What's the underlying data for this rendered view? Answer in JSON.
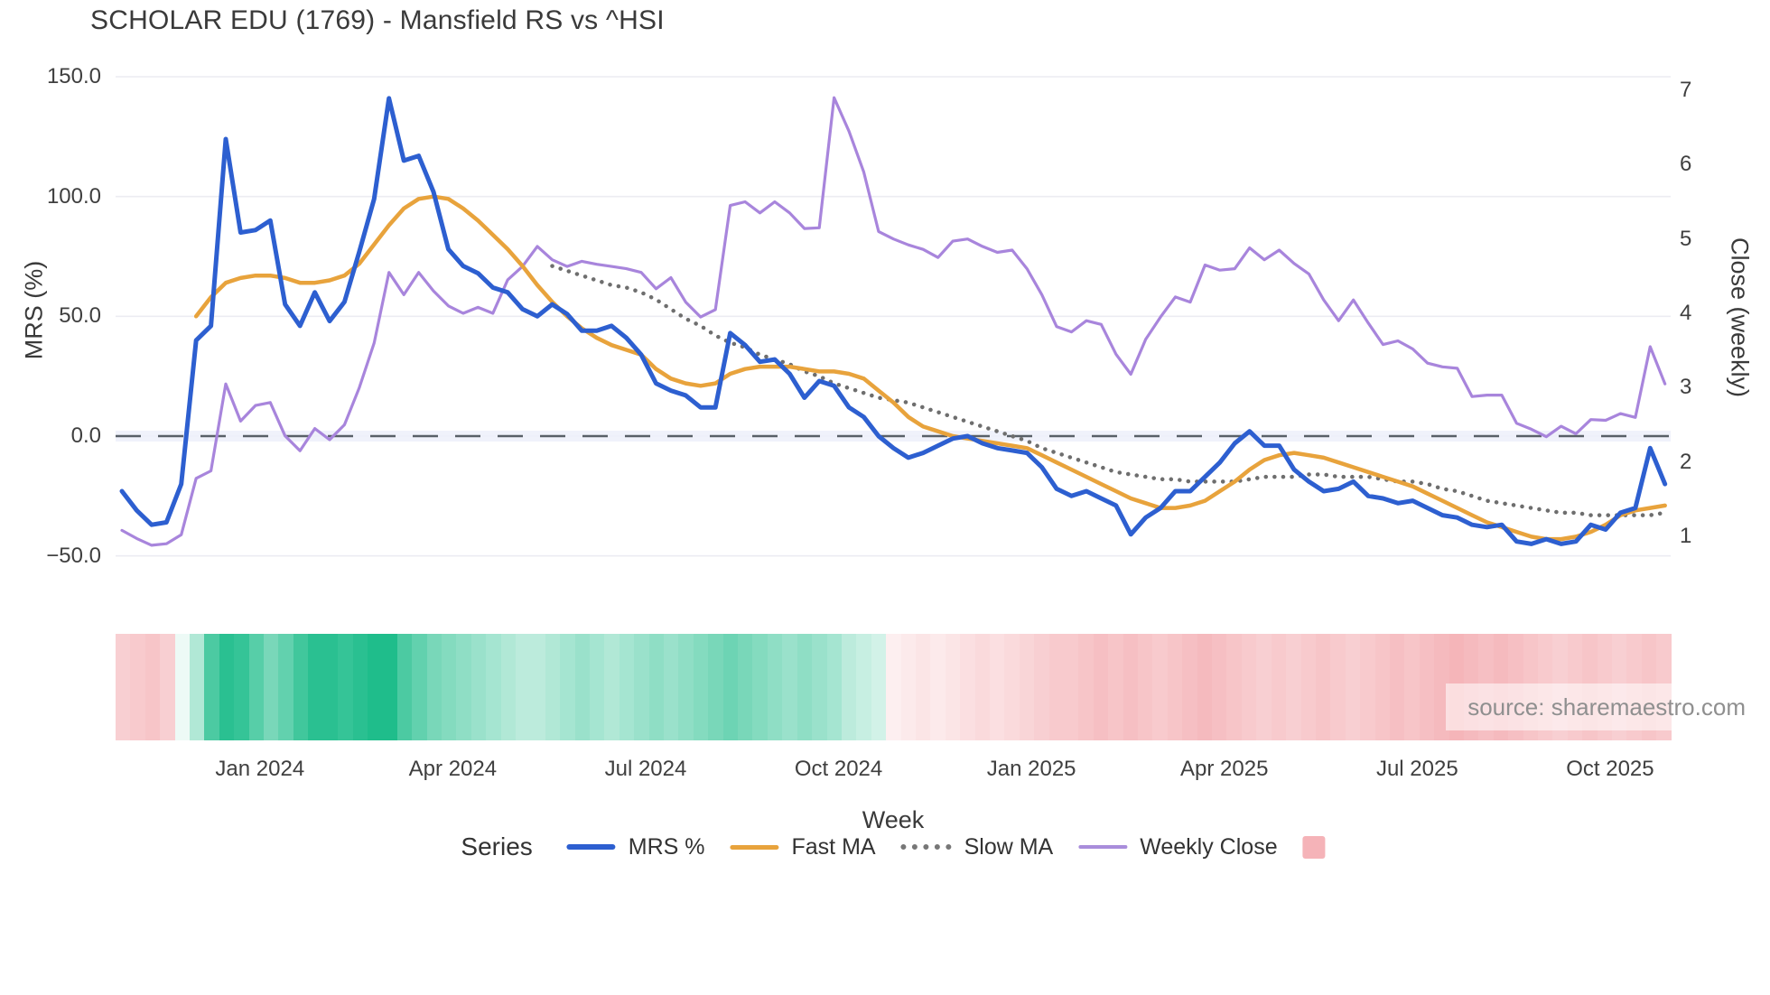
{
  "title": "SCHOLAR EDU (1769) - Mansfield RS vs ^HSI",
  "source_label": "source: sharemaestro.com",
  "axes": {
    "left": {
      "label": "MRS (%)",
      "ticks": [
        "150.0",
        "100.0",
        "50.0",
        "0.0",
        "−50.0"
      ],
      "tick_values": [
        150,
        100,
        50,
        0,
        -50
      ]
    },
    "right": {
      "label": "Close (weekly)",
      "ticks": [
        "7",
        "6",
        "5",
        "4",
        "3",
        "2",
        "1"
      ],
      "tick_values": [
        7,
        6,
        5,
        4,
        3,
        2,
        1
      ]
    },
    "x": {
      "label": "Week",
      "ticks": [
        "Jan 2024",
        "Apr 2024",
        "Jul 2024",
        "Oct 2024",
        "Jan 2025",
        "Apr 2025",
        "Jul 2025",
        "Oct 2025"
      ],
      "tick_weeks": [
        9.3,
        22.3,
        35.3,
        48.3,
        61.3,
        74.3,
        87.3,
        100.3
      ]
    }
  },
  "legend": {
    "series_label": "Series",
    "items": [
      {
        "label": "MRS %",
        "swatch": "line",
        "color": "#2d5fd0",
        "thickness": 6
      },
      {
        "label": "Fast MA",
        "swatch": "line",
        "color": "#e8a33c",
        "thickness": 5
      },
      {
        "label": "Slow MA",
        "swatch": "dotted",
        "color": "#777777",
        "thickness": 6
      },
      {
        "label": "Weekly Close",
        "swatch": "line",
        "color": "#a98ddb",
        "thickness": 4
      },
      {
        "label": "",
        "swatch": "square",
        "color": "#f5b3b8",
        "thickness": 25
      }
    ]
  },
  "chart_data": {
    "type": "line",
    "title": "SCHOLAR EDU (1769) - Mansfield RS vs ^HSI",
    "xlabel": "Week",
    "ylabel_left": "MRS (%)",
    "ylabel_right": "Close (weekly)",
    "left_ylim": [
      -50,
      150
    ],
    "right_ylim": [
      1,
      7
    ],
    "zero_line": 0,
    "grid": "horizontal-left-ticks",
    "legend_position": "bottom",
    "n_weeks": 105,
    "series": [
      {
        "name": "MRS %",
        "axis": "left",
        "color": "#2d5fd0",
        "style": "solid",
        "width": 5,
        "start_week": 0,
        "values": [
          -23,
          -31,
          -37,
          -36,
          -20,
          40,
          46,
          124,
          85,
          86,
          90,
          55,
          46,
          60,
          48,
          56,
          77,
          99,
          141,
          115,
          117,
          102,
          78,
          71,
          68,
          62,
          60,
          53,
          50,
          55,
          51,
          44,
          44,
          46,
          41,
          34,
          22,
          19,
          17,
          12,
          12,
          43,
          38,
          31,
          32,
          26,
          16,
          23,
          21,
          12,
          8,
          0,
          -5,
          -9,
          -7,
          -4,
          -1,
          0,
          -3,
          -5,
          -6,
          -7,
          -13,
          -22,
          -25,
          -23,
          -26,
          -29,
          -41,
          -34,
          -30,
          -23,
          -23,
          -17,
          -11,
          -3,
          2,
          -4,
          -4,
          -14,
          -19,
          -23,
          -22,
          -19,
          -25,
          -26,
          -28,
          -27,
          -30,
          -33,
          -34,
          -37,
          -38,
          -37,
          -44,
          -45,
          -43,
          -45,
          -44,
          -37,
          -39,
          -32,
          -30,
          -5,
          -20
        ]
      },
      {
        "name": "Fast MA",
        "axis": "left",
        "color": "#e8a33c",
        "style": "solid",
        "width": 4.5,
        "start_week": 5,
        "values": [
          50,
          58,
          64,
          66,
          67,
          67,
          66,
          64,
          64,
          65,
          67,
          72,
          80,
          88,
          95,
          99,
          100,
          99,
          95,
          90,
          84,
          78,
          71,
          63,
          56,
          50,
          45,
          41,
          38,
          36,
          34,
          28,
          24,
          22,
          21,
          22,
          26,
          28,
          29,
          29,
          29,
          28,
          27,
          27,
          26,
          24,
          19,
          14,
          8,
          4,
          2,
          0,
          -1,
          -2,
          -3,
          -4,
          -5,
          -8,
          -11,
          -14,
          -17,
          -20,
          -23,
          -26,
          -28,
          -30,
          -30,
          -29,
          -27,
          -23,
          -19,
          -14,
          -10,
          -8,
          -7,
          -8,
          -9,
          -11,
          -13,
          -15,
          -17,
          -19,
          -21,
          -24,
          -27,
          -30,
          -33,
          -36,
          -38,
          -40,
          -42,
          -43,
          -43,
          -42,
          -40,
          -37,
          -33,
          -31,
          -30,
          -29
        ]
      },
      {
        "name": "Slow MA",
        "axis": "left",
        "color": "#6e6e6e",
        "style": "dotted",
        "width": 4.5,
        "start_week": 29,
        "values": [
          71,
          69,
          67,
          65,
          63,
          62,
          60,
          57,
          53,
          49,
          46,
          42,
          39,
          37,
          34,
          32,
          30,
          27,
          25,
          22,
          20,
          18,
          16,
          15,
          14,
          12,
          10,
          8,
          6,
          4,
          2,
          0,
          -2,
          -5,
          -7,
          -9,
          -11,
          -13,
          -15,
          -16,
          -17,
          -18,
          -18,
          -19,
          -19,
          -19,
          -19,
          -18,
          -17,
          -17,
          -17,
          -16,
          -16,
          -17,
          -17,
          -17,
          -18,
          -19,
          -19,
          -20,
          -22,
          -23,
          -25,
          -27,
          -28,
          -29,
          -30,
          -31,
          -32,
          -32,
          -33,
          -33,
          -33,
          -33,
          -33,
          -32
        ]
      },
      {
        "name": "Weekly Close",
        "axis": "right",
        "color": "#a885dc",
        "style": "solid",
        "width": 3.2,
        "start_week": 0,
        "values": [
          1.08,
          0.97,
          0.88,
          0.9,
          1.02,
          1.78,
          1.88,
          3.05,
          2.55,
          2.76,
          2.8,
          2.35,
          2.15,
          2.45,
          2.3,
          2.5,
          3.0,
          3.6,
          4.55,
          4.25,
          4.55,
          4.3,
          4.1,
          4.0,
          4.08,
          4.0,
          4.45,
          4.63,
          4.9,
          4.72,
          4.63,
          4.7,
          4.66,
          4.63,
          4.6,
          4.55,
          4.33,
          4.48,
          4.15,
          3.95,
          4.05,
          5.45,
          5.5,
          5.35,
          5.5,
          5.35,
          5.14,
          5.15,
          6.9,
          6.45,
          5.9,
          5.1,
          5.0,
          4.92,
          4.86,
          4.75,
          4.97,
          5.0,
          4.9,
          4.82,
          4.85,
          4.6,
          4.25,
          3.82,
          3.75,
          3.9,
          3.85,
          3.45,
          3.18,
          3.65,
          3.95,
          4.22,
          4.15,
          4.65,
          4.58,
          4.6,
          4.88,
          4.72,
          4.85,
          4.67,
          4.53,
          4.18,
          3.9,
          4.18,
          3.87,
          3.58,
          3.63,
          3.52,
          3.33,
          3.28,
          3.26,
          2.88,
          2.9,
          2.9,
          2.52,
          2.44,
          2.34,
          2.48,
          2.38,
          2.57,
          2.56,
          2.65,
          2.6,
          3.55,
          3.05
        ]
      }
    ],
    "heatmap": {
      "description": "bottom weekly sentiment strip, green positive / red negative",
      "positive_color": "#1fbd8b",
      "negative_color": "#f0959b",
      "values": [
        -0.45,
        -0.5,
        -0.55,
        -0.45,
        0.08,
        0.35,
        0.8,
        0.95,
        0.9,
        0.75,
        0.6,
        0.7,
        0.85,
        0.95,
        0.95,
        0.9,
        0.95,
        1.0,
        1.0,
        0.8,
        0.7,
        0.6,
        0.55,
        0.5,
        0.45,
        0.4,
        0.35,
        0.3,
        0.3,
        0.35,
        0.4,
        0.45,
        0.4,
        0.35,
        0.4,
        0.45,
        0.5,
        0.45,
        0.5,
        0.55,
        0.6,
        0.65,
        0.6,
        0.55,
        0.5,
        0.45,
        0.5,
        0.45,
        0.4,
        0.3,
        0.25,
        0.2,
        -0.15,
        -0.2,
        -0.25,
        -0.2,
        -0.25,
        -0.3,
        -0.35,
        -0.3,
        -0.35,
        -0.4,
        -0.45,
        -0.5,
        -0.5,
        -0.55,
        -0.6,
        -0.55,
        -0.6,
        -0.55,
        -0.5,
        -0.55,
        -0.6,
        -0.65,
        -0.6,
        -0.55,
        -0.5,
        -0.45,
        -0.5,
        -0.45,
        -0.5,
        -0.55,
        -0.5,
        -0.45,
        -0.5,
        -0.55,
        -0.6,
        -0.55,
        -0.6,
        -0.65,
        -0.7,
        -0.65,
        -0.6,
        -0.65,
        -0.6,
        -0.55,
        -0.5,
        -0.45,
        -0.5,
        -0.55,
        -0.5,
        -0.45,
        -0.5,
        -0.55,
        -0.5
      ]
    }
  },
  "colors": {
    "grid": "#ececf2",
    "zero_dash": "#596068",
    "zero_band": "#edf0fa",
    "tick_text": "#3f3f3f",
    "title_text": "#3a3a3a"
  }
}
